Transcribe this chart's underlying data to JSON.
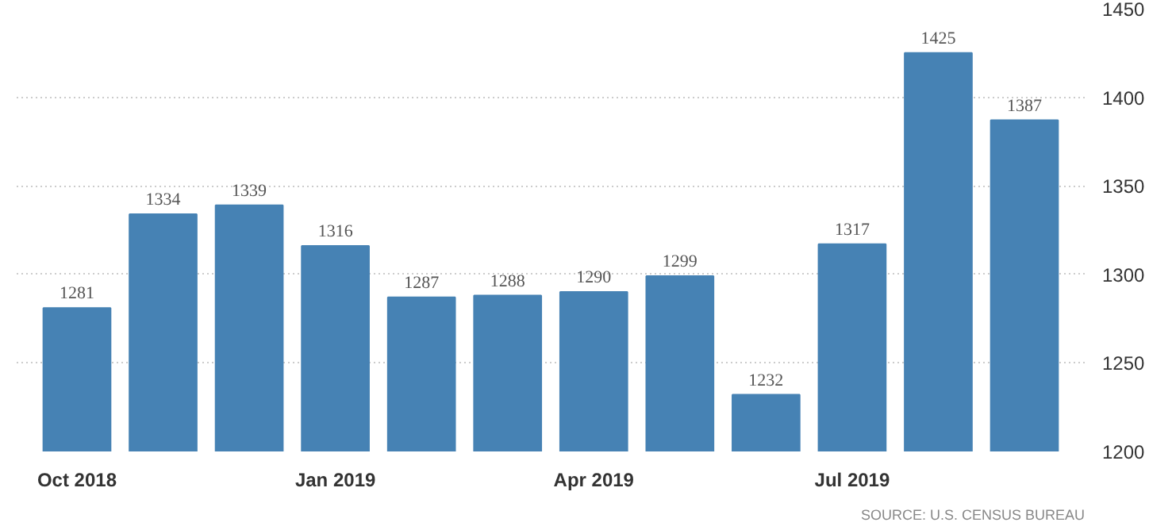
{
  "chart_data": {
    "type": "bar",
    "categories": [
      "Oct 2018",
      null,
      null,
      "Jan 2019",
      null,
      null,
      "Apr 2019",
      null,
      null,
      "Jul 2019",
      null,
      null
    ],
    "values": [
      1281,
      1334,
      1339,
      1316,
      1287,
      1288,
      1290,
      1299,
      1232,
      1317,
      1425,
      1387
    ],
    "color": "#4682b4",
    "ylim": [
      1200,
      1450
    ],
    "yticks": [
      1200,
      1250,
      1300,
      1350,
      1400,
      1450
    ],
    "grid": "y",
    "data_labels": true,
    "annotations": [
      "SOURCE: U.S. CENSUS BUREAU"
    ]
  }
}
